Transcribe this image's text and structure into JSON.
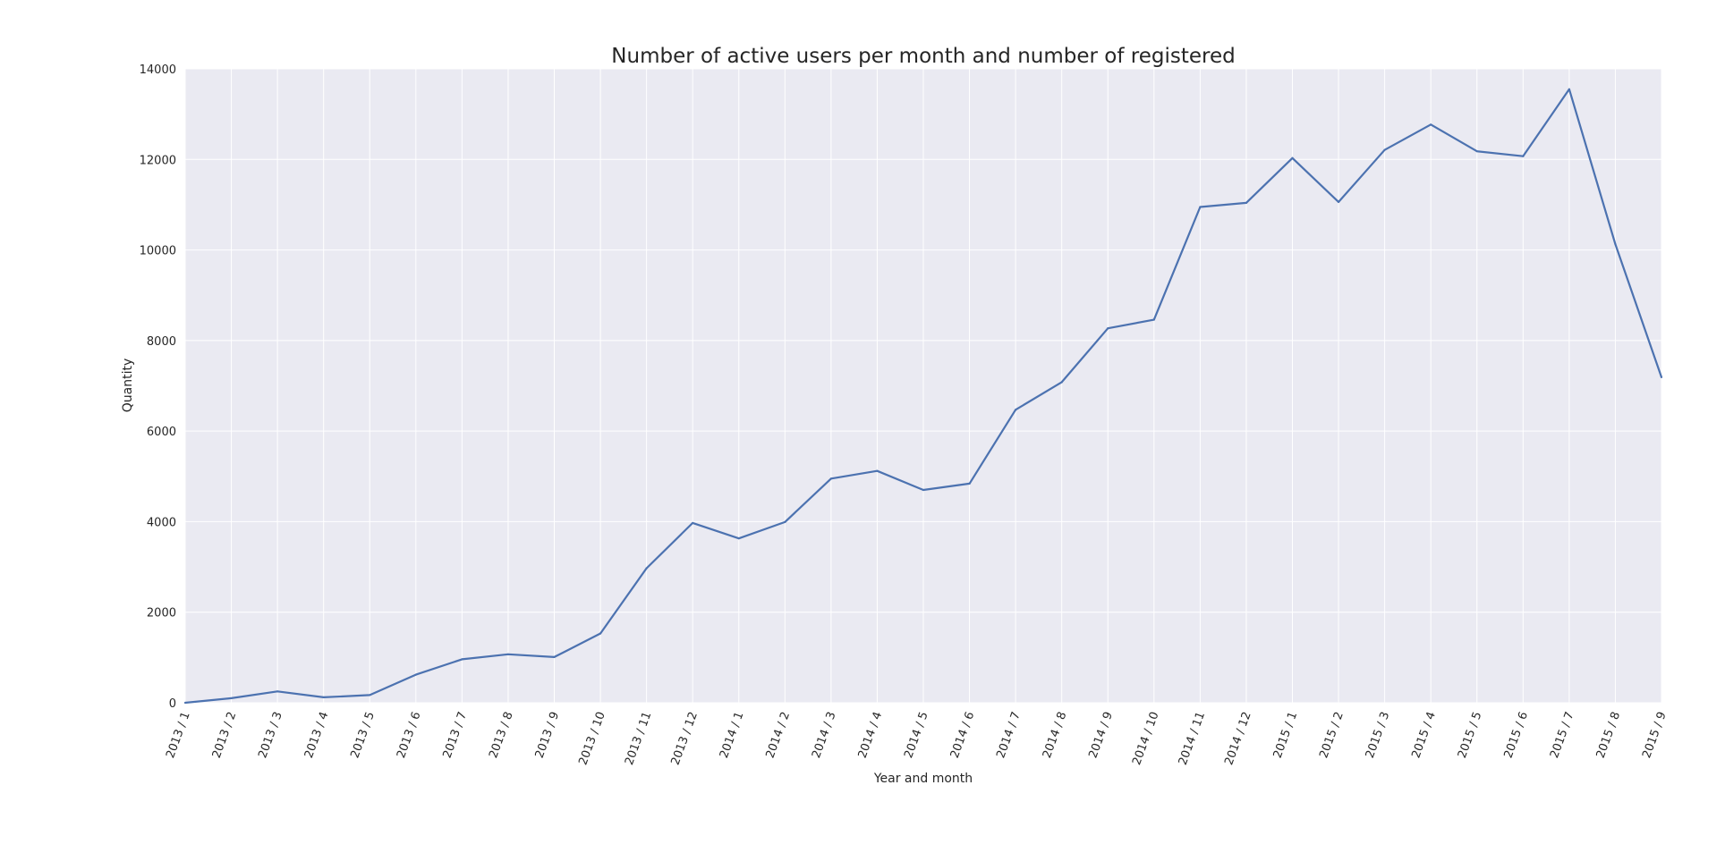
{
  "chart_data": {
    "type": "line",
    "title": "Number of active users per month and number of registered",
    "xlabel": "Year and month",
    "ylabel": "Quantity",
    "x": [
      "2013 / 1",
      "2013 / 2",
      "2013 / 3",
      "2013 / 4",
      "2013 / 5",
      "2013 / 6",
      "2013 / 7",
      "2013 / 8",
      "2013 / 9",
      "2013 / 10",
      "2013 / 11",
      "2013 / 12",
      "2014 / 1",
      "2014 / 2",
      "2014 / 3",
      "2014 / 4",
      "2014 / 5",
      "2014 / 6",
      "2014 / 7",
      "2014 / 8",
      "2014 / 9",
      "2014 / 10",
      "2014 / 11",
      "2014 / 12",
      "2015 / 1",
      "2015 / 2",
      "2015 / 3",
      "2015 / 4",
      "2015 / 5",
      "2015 / 6",
      "2015 / 7",
      "2015 / 8",
      "2015 / 9"
    ],
    "series": [
      {
        "values": [
          0,
          100,
          250,
          120,
          170,
          620,
          960,
          1070,
          1010,
          1530,
          2970,
          3970,
          3630,
          3990,
          4950,
          5120,
          4700,
          4840,
          6470,
          7080,
          8270,
          8460,
          10950,
          11040,
          12030,
          11060,
          12210,
          12770,
          12180,
          12070,
          13550,
          10130,
          7190
        ]
      }
    ],
    "ylim": [
      0,
      14000
    ],
    "yticks": [
      "0",
      "2000",
      "4000",
      "6000",
      "8000",
      "10000",
      "12000",
      "14000"
    ],
    "grid": true,
    "colors": {
      "line": "#4c72b0",
      "plot_background": "#eaeaf2",
      "grid": "#ffffff"
    }
  }
}
